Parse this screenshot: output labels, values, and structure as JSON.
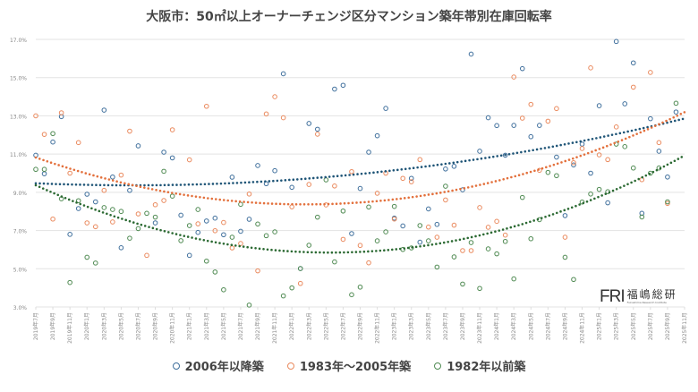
{
  "chart_data": {
    "type": "scatter",
    "title": "大阪市：50㎡以上オーナーチェンジ区分マンション築年帯別在庫回転率",
    "xlabel": "",
    "ylabel": "",
    "ylim": [
      3.0,
      17.0
    ],
    "yticks": [
      "3.0%",
      "5.0%",
      "7.0%",
      "9.0%",
      "11.0%",
      "13.0%",
      "15.0%",
      "17.0%"
    ],
    "ytick_values": [
      3,
      5,
      7,
      9,
      11,
      13,
      15,
      17
    ],
    "grid": true,
    "legend_position": "bottom",
    "trendline": "polynomial-2",
    "x_start": "2019-07",
    "xticks": [
      "2019年7月",
      "2019年9月",
      "2019年11月",
      "2020年1月",
      "2020年3月",
      "2020年5月",
      "2020年7月",
      "2020年9月",
      "2020年11月",
      "2021年1月",
      "2021年3月",
      "2021年5月",
      "2021年7月",
      "2021年9月",
      "2021年11月",
      "2022年1月",
      "2022年3月",
      "2022年5月",
      "2022年7月",
      "2022年9月",
      "2022年11月",
      "2023年1月",
      "2023年3月",
      "2023年5月",
      "2023年7月",
      "2023年9月",
      "2023年11月",
      "2024年1月",
      "2024年3月",
      "2024年5月",
      "2024年7月",
      "2024年9月",
      "2024年11月",
      "2025年1月",
      "2025年3月",
      "2025年5月",
      "2025年7月",
      "2025年9月",
      "2025年11月"
    ],
    "series": [
      {
        "name": "2006年以降築",
        "color": "#3f6f9c",
        "trend_color": "#1f5577",
        "values": [
          10.94,
          9.97,
          11.63,
          12.96,
          6.8,
          8.15,
          8.9,
          8.5,
          13.3,
          9.8,
          6.1,
          9.1,
          11.43,
          null,
          7.4,
          11.1,
          10.8,
          7.8,
          5.7,
          6.9,
          7.5,
          7.65,
          6.78,
          9.79,
          6.96,
          7.59,
          10.4,
          9.45,
          10.13,
          15.2,
          9.26,
          5.01,
          12.6,
          12.3,
          null,
          14.4,
          14.6,
          6.84,
          9.2,
          11.1,
          11.96,
          13.39,
          7.65,
          7.24,
          9.73,
          6.39,
          8.13,
          7.32,
          10.22,
          10.36,
          9.13,
          16.23,
          11.15,
          12.9,
          12.49,
          10.94,
          12.5,
          15.47,
          11.91,
          12.5,
          null,
          10.84,
          7.78,
          10.43,
          11.52,
          10.0,
          13.53,
          8.45,
          16.89,
          13.63,
          15.77,
          7.9,
          12.85,
          11.15,
          9.8,
          13.2
        ]
      },
      {
        "name": "1983年～2005年築",
        "color": "#ea8a5e",
        "trend_color": "#e3703c",
        "values": [
          13.0,
          12.03,
          7.6,
          13.16,
          10.0,
          11.6,
          7.4,
          7.2,
          9.1,
          7.45,
          9.9,
          12.2,
          7.87,
          5.7,
          8.35,
          8.57,
          12.27,
          null,
          10.7,
          7.35,
          13.5,
          6.99,
          7.42,
          6.09,
          6.32,
          8.91,
          4.89,
          13.1,
          14.0,
          12.9,
          8.24,
          4.23,
          9.41,
          12.04,
          8.34,
          9.33,
          6.54,
          10.08,
          6.22,
          5.31,
          8.95,
          10.0,
          7.6,
          9.73,
          9.55,
          10.71,
          7.18,
          6.65,
          8.6,
          7.28,
          5.95,
          5.95,
          8.2,
          7.17,
          7.48,
          6.76,
          15.03,
          12.88,
          13.6,
          10.15,
          12.72,
          13.38,
          6.65,
          10.55,
          11.29,
          15.51,
          10.96,
          10.71,
          12.42,
          null,
          14.5,
          9.66,
          15.27,
          11.6,
          8.42,
          null
        ]
      },
      {
        "name": "1982年以前築",
        "color": "#4f8a52",
        "trend_color": "#2c6a33",
        "values": [
          10.2,
          10.2,
          12.07,
          8.66,
          4.28,
          8.56,
          5.6,
          5.3,
          8.2,
          8.1,
          8.0,
          6.6,
          7.1,
          7.9,
          7.7,
          10.1,
          8.8,
          6.47,
          7.26,
          8.1,
          5.4,
          4.83,
          3.9,
          6.65,
          8.37,
          3.1,
          7.34,
          6.73,
          6.93,
          3.58,
          4.0,
          5.01,
          6.23,
          7.7,
          9.65,
          5.36,
          8.02,
          3.64,
          4.04,
          8.23,
          6.46,
          6.93,
          8.26,
          6.01,
          6.09,
          7.26,
          6.46,
          5.09,
          9.32,
          5.62,
          4.2,
          6.37,
          3.97,
          6.04,
          5.78,
          6.43,
          4.47,
          8.73,
          6.57,
          7.57,
          10.04,
          9.87,
          5.6,
          4.44,
          8.49,
          8.91,
          9.15,
          9.03,
          11.52,
          11.39,
          10.27,
          7.71,
          10.0,
          10.27,
          8.5,
          13.66
        ]
      }
    ]
  },
  "logo": {
    "mark": "FRI",
    "name": "福嶋総研",
    "subtitle": "Fukushima Research Institute"
  }
}
